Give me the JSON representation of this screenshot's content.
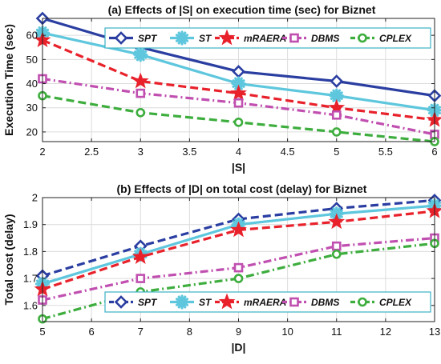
{
  "chart_data": [
    {
      "type": "line",
      "title": "(a) Effects of |S| on execution time (sec) for Biznet",
      "xlabel": "|S|",
      "ylabel": "Execution Time (sec)",
      "xlim": [
        2,
        6
      ],
      "ylim": [
        16,
        67
      ],
      "xticks": [
        2,
        2.5,
        3,
        3.5,
        4,
        4.5,
        5,
        5.5,
        6
      ],
      "yticks": [
        20,
        30,
        40,
        50,
        60
      ],
      "grid": true,
      "legend_placement": "top",
      "x": [
        2,
        3,
        4,
        5,
        6
      ],
      "series": [
        {
          "name": "SPT",
          "values": [
            67,
            55,
            45,
            41,
            35
          ],
          "color": "#2a3ea1",
          "dash": "solid",
          "marker": "diamond"
        },
        {
          "name": "ST",
          "values": [
            61,
            52,
            40,
            35,
            29
          ],
          "color": "#5ec7dd",
          "dash": "solid",
          "marker": "asterisk"
        },
        {
          "name": "mRAERA",
          "values": [
            58,
            41,
            36,
            30,
            25
          ],
          "color": "#e8212b",
          "dash": "dashed",
          "marker": "star"
        },
        {
          "name": "DBMS",
          "values": [
            42,
            36,
            32,
            27,
            19
          ],
          "color": "#c04fb0",
          "dash": "dashdot",
          "marker": "square"
        },
        {
          "name": "CPLEX",
          "values": [
            35,
            28,
            24,
            20,
            16
          ],
          "color": "#3dad3d",
          "dash": "dashed",
          "marker": "circle"
        }
      ]
    },
    {
      "type": "line",
      "title": "(b) Effects of |D| on total cost (delay) for Biznet",
      "xlabel": "|D|",
      "ylabel": "Total cost (delay)",
      "xlim": [
        5,
        13
      ],
      "ylim": [
        1.54,
        2.0
      ],
      "xticks": [
        5,
        6,
        7,
        8,
        9,
        10,
        11,
        12,
        13
      ],
      "yticks": [
        1.6,
        1.7,
        1.8,
        1.9,
        2
      ],
      "grid": true,
      "legend_placement": "bottom",
      "x": [
        5,
        7,
        9,
        11,
        13
      ],
      "series": [
        {
          "name": "SPT",
          "values": [
            1.71,
            1.82,
            1.92,
            1.96,
            1.99
          ],
          "color": "#2a3ea1",
          "dash": "dashed",
          "marker": "diamond"
        },
        {
          "name": "ST",
          "values": [
            1.68,
            1.79,
            1.9,
            1.94,
            1.97
          ],
          "color": "#5ec7dd",
          "dash": "solid",
          "marker": "asterisk"
        },
        {
          "name": "mRAERA",
          "values": [
            1.66,
            1.78,
            1.88,
            1.91,
            1.95
          ],
          "color": "#e8212b",
          "dash": "dashed",
          "marker": "star"
        },
        {
          "name": "DBMS",
          "values": [
            1.62,
            1.7,
            1.74,
            1.82,
            1.85
          ],
          "color": "#c04fb0",
          "dash": "dashdot",
          "marker": "square"
        },
        {
          "name": "CPLEX",
          "values": [
            1.55,
            1.65,
            1.7,
            1.79,
            1.83
          ],
          "color": "#3dad3d",
          "dash": "dashdot",
          "marker": "circle"
        }
      ]
    }
  ]
}
